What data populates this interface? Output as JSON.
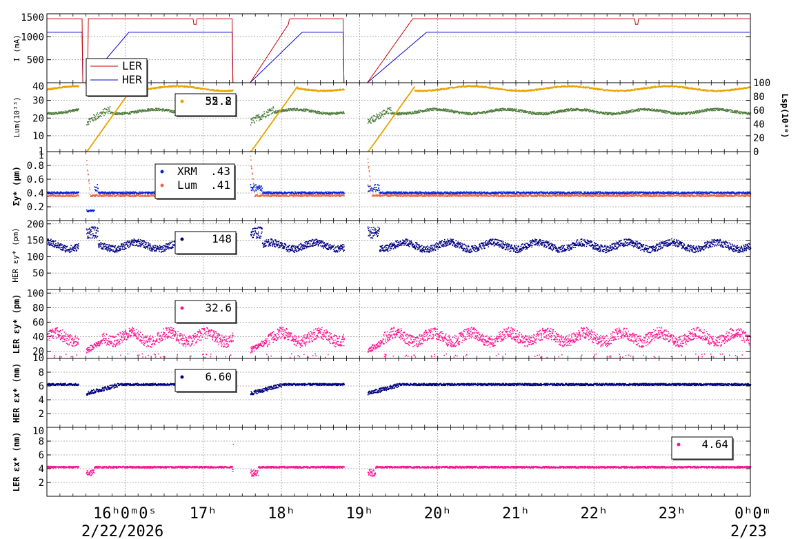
{
  "chart_data": [
    {
      "type": "line",
      "ylabel": "I (mA)",
      "yticks": [
        "1500",
        "1000",
        "500"
      ],
      "ylim": [
        0,
        1500
      ],
      "series": [
        {
          "name": "LER",
          "color": "#cc0000"
        },
        {
          "name": "HER",
          "color": "#0000cc"
        }
      ],
      "legend": [
        "LER",
        "HER"
      ]
    },
    {
      "type": "scatter",
      "ylabel": "Lum(10³³)",
      "yticks": [
        "40",
        "30",
        "20",
        "10",
        "1"
      ],
      "ylim": [
        1,
        40
      ],
      "ylabel_right": "Lsp(10³⁰)",
      "yticks_right": [
        "100",
        "80",
        "60",
        "40",
        "20",
        "0"
      ],
      "ylim_right": [
        0,
        100
      ],
      "series": [
        {
          "color": "#e6a400",
          "value_label": "55.8"
        },
        {
          "color": "#4d7a3a",
          "value_label": "32.2"
        }
      ]
    },
    {
      "type": "scatter",
      "ylabel": "Σy* (μm)",
      "yticks": [
        "1",
        "0.8",
        "0.6",
        "0.4",
        "0.2"
      ],
      "ylim": [
        0,
        1
      ],
      "series": [
        {
          "name": "XRM",
          "color": "#0022dd",
          "value_label": ".43"
        },
        {
          "name": "Lum",
          "color": "#ee6644",
          "value_label": ".41"
        }
      ]
    },
    {
      "type": "scatter",
      "ylabel": "HER εy* (pm)",
      "yticks": [
        "200",
        "150",
        "100",
        "50"
      ],
      "ylim": [
        0,
        210
      ],
      "series": [
        {
          "color": "#000080",
          "value_label": "148"
        }
      ]
    },
    {
      "type": "scatter",
      "ylabel": "LER εy* (pm)",
      "yticks": [
        "100",
        "80",
        "60",
        "40",
        "20",
        "10"
      ],
      "ylim": [
        10,
        105
      ],
      "series": [
        {
          "color": "#ff1493",
          "value_label": "32.6"
        }
      ]
    },
    {
      "type": "scatter",
      "ylabel": "HER εx* (nm)",
      "yticks": [
        "8",
        "6",
        "4",
        "2"
      ],
      "ylim": [
        0,
        10
      ],
      "series": [
        {
          "color": "#000080",
          "value_label": "6.60"
        }
      ]
    },
    {
      "type": "scatter",
      "ylabel": "LER εx* (nm)",
      "yticks": [
        "10",
        "8",
        "6",
        "4",
        "2"
      ],
      "ylim": [
        0,
        10
      ],
      "series": [
        {
          "color": "#ff1493",
          "value_label": "4.64"
        }
      ]
    }
  ],
  "x_axis": {
    "range_hours": [
      15,
      24
    ],
    "labels": [
      {
        "h": 16,
        "text": "16ʰ0ᵐ0ˢ"
      },
      {
        "h": 17,
        "text": "17ʰ"
      },
      {
        "h": 18,
        "text": "18ʰ"
      },
      {
        "h": 19,
        "text": "19ʰ"
      },
      {
        "h": 20,
        "text": "20ʰ"
      },
      {
        "h": 21,
        "text": "21ʰ"
      },
      {
        "h": 22,
        "text": "22ʰ"
      },
      {
        "h": 23,
        "text": "23ʰ"
      },
      {
        "h": 24,
        "text": "0ʰ0ᵐ"
      }
    ],
    "date_left": "2/22/2026",
    "date_right": "2/23"
  }
}
